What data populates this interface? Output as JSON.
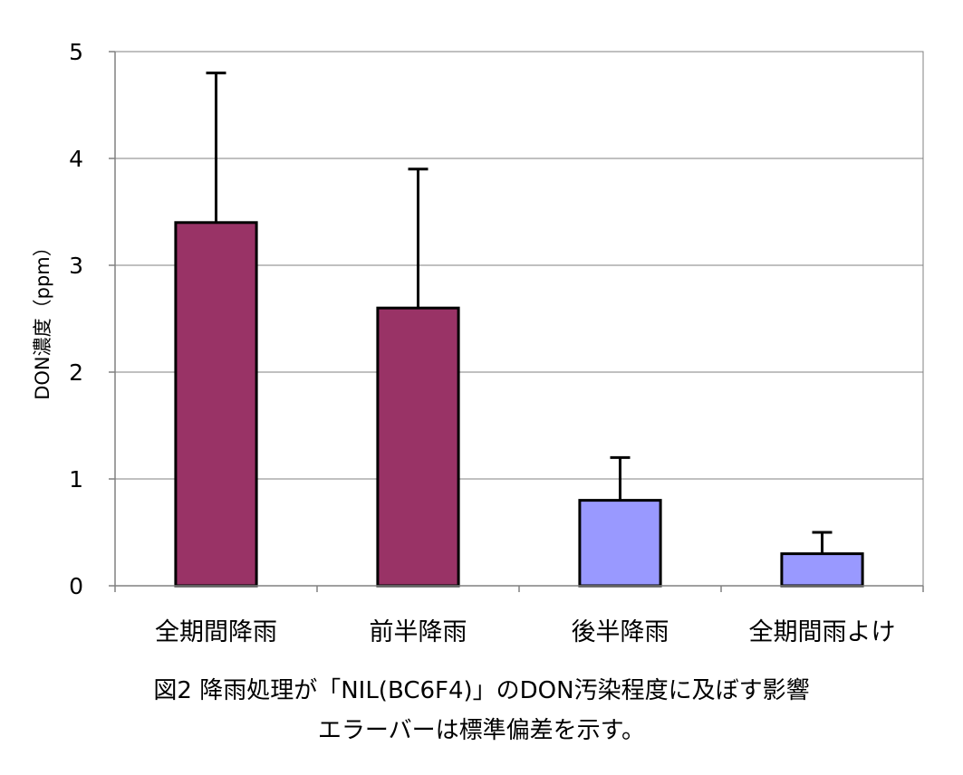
{
  "chart_data": {
    "type": "bar",
    "categories": [
      "全期間降雨",
      "前半降雨",
      "後半降雨",
      "全期間雨よけ"
    ],
    "values": [
      3.4,
      2.6,
      0.8,
      0.3
    ],
    "error_bars": [
      1.4,
      1.3,
      0.4,
      0.2
    ],
    "bar_colors": [
      "#993366",
      "#993366",
      "#9999ff",
      "#9999ff"
    ],
    "xlabel": "",
    "ylabel": "DON濃度（ppm）",
    "ylim": [
      0,
      5
    ],
    "yticks": [
      0,
      1,
      2,
      3,
      4,
      5
    ],
    "grid": true,
    "legend": "none"
  },
  "caption": {
    "line1": "図2  降雨処理が「NIL(BC6F4)」のDON汚染程度に及ぼす影響",
    "line2": "エラーバーは標準偏差を示す。"
  }
}
